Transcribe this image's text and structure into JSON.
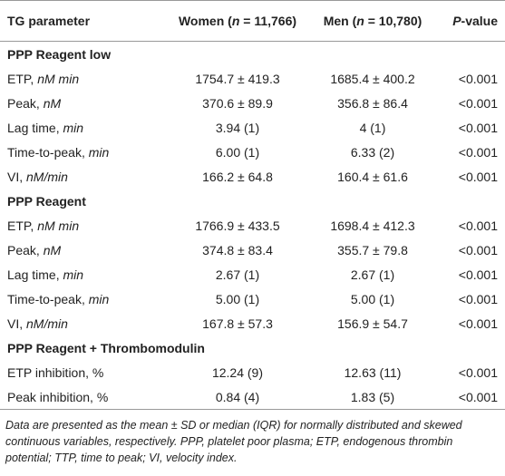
{
  "header": {
    "param": "TG parameter",
    "women": [
      "Women (",
      "n",
      " = 11,766)"
    ],
    "men": [
      "Men (",
      "n",
      " = 10,780)"
    ],
    "p": [
      "P",
      "-value"
    ]
  },
  "sections": [
    {
      "title": "PPP Reagent low",
      "rows": [
        {
          "name": "ETP,",
          "unit": "nM min",
          "women": "1754.7 ± 419.3",
          "men": "1685.4 ± 400.2",
          "p": "<0.001"
        },
        {
          "name": "Peak,",
          "unit": "nM",
          "women": "370.6 ± 89.9",
          "men": "356.8 ± 86.4",
          "p": "<0.001"
        },
        {
          "name": "Lag time,",
          "unit": "min",
          "women": "3.94 (1)",
          "men": "4 (1)",
          "p": "<0.001"
        },
        {
          "name": "Time-to-peak,",
          "unit": "min",
          "women": "6.00 (1)",
          "men": "6.33 (2)",
          "p": "<0.001"
        },
        {
          "name": "VI,",
          "unit": "nM/min",
          "women": "166.2 ± 64.8",
          "men": "160.4 ± 61.6",
          "p": "<0.001"
        }
      ]
    },
    {
      "title": "PPP Reagent",
      "rows": [
        {
          "name": "ETP,",
          "unit": "nM min",
          "women": "1766.9 ± 433.5",
          "men": "1698.4 ± 412.3",
          "p": "<0.001"
        },
        {
          "name": "Peak,",
          "unit": "nM",
          "women": "374.8 ± 83.4",
          "men": "355.7 ± 79.8",
          "p": "<0.001"
        },
        {
          "name": "Lag time,",
          "unit": "min",
          "women": "2.67 (1)",
          "men": "2.67 (1)",
          "p": "<0.001"
        },
        {
          "name": "Time-to-peak,",
          "unit": "min",
          "women": "5.00 (1)",
          "men": "5.00 (1)",
          "p": "<0.001"
        },
        {
          "name": "VI,",
          "unit": "nM/min",
          "women": "167.8 ± 57.3",
          "men": "156.9 ± 54.7",
          "p": "<0.001"
        }
      ]
    },
    {
      "title": "PPP Reagent + Thrombomodulin",
      "rows": [
        {
          "name": "ETP inhibition, %",
          "women": "12.24 (9)",
          "men": "12.63 (11)",
          "p": "<0.001"
        },
        {
          "name": "Peak inhibition, %",
          "women": "0.84 (4)",
          "men": "1.83 (5)",
          "p": "<0.001"
        }
      ]
    }
  ],
  "footnote": "Data are presented as the mean ± SD or median (IQR) for normally distributed and skewed continuous variables, respectively. PPP, platelet poor plasma; ETP, endogenous thrombin potential; TTP, time to peak; VI, velocity index."
}
